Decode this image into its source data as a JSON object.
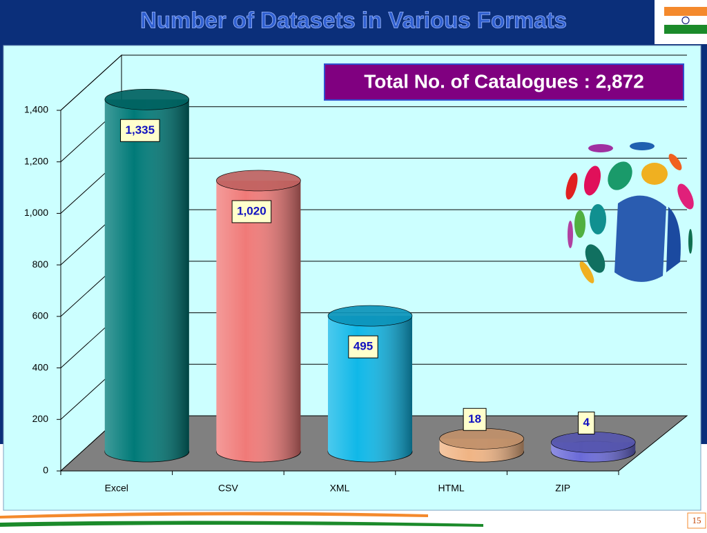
{
  "chart_data": {
    "type": "bar3d",
    "title": "Number of Datasets in Various Formats",
    "annotation": "Total No. of Catalogues : 2,872",
    "categories": [
      "Excel",
      "CSV",
      "XML",
      "HTML",
      "ZIP"
    ],
    "values": [
      1335,
      1020,
      495,
      18,
      4
    ],
    "value_labels": [
      "1,335",
      "1,020",
      "495",
      "18",
      "4"
    ],
    "colors": [
      "#007a78",
      "#f07a78",
      "#10b8e8",
      "#f0b484",
      "#6a6ad8"
    ],
    "ylim": [
      0,
      1400
    ],
    "yticks": [
      0,
      200,
      400,
      600,
      800,
      {
        "value": 1000,
        "label": "1,000"
      },
      {
        "value": 1200,
        "label": "1,200"
      },
      {
        "value": 1400,
        "label": "1,400"
      }
    ],
    "grid": true
  },
  "page_number": "15"
}
